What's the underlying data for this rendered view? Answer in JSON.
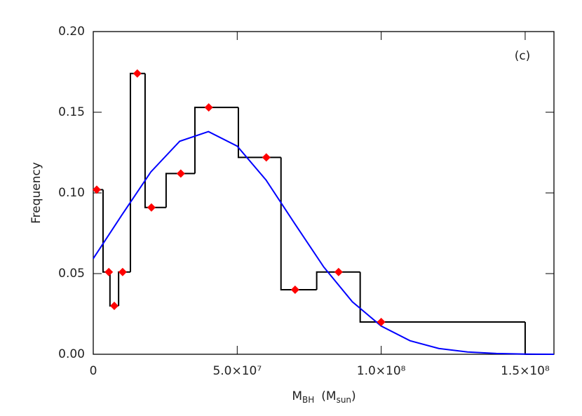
{
  "chart_data": {
    "type": "histogram",
    "annotation": "(c)",
    "xlabel": [
      "M",
      "BH",
      "(M",
      "sun",
      ")"
    ],
    "ylabel": "Frequency",
    "xlim": [
      0,
      160000000
    ],
    "ylim": [
      0,
      0.2
    ],
    "xticks": [
      0,
      {
        "value": 50000000,
        "label": "5.0×10⁷"
      },
      {
        "value": 100000000,
        "label": "1.0×10⁸"
      },
      {
        "value": 150000000,
        "label": "1.5×10⁸"
      }
    ],
    "yticks": [
      {
        "value": 0,
        "label": "0.00"
      },
      {
        "value": 0.05,
        "label": "0.05"
      },
      {
        "value": 0.1,
        "label": "0.10"
      },
      {
        "value": 0.15,
        "label": "0.15"
      },
      {
        "value": 0.2,
        "label": "0.20"
      }
    ],
    "bins": [
      0,
      3400000,
      5800000,
      8800000,
      12900000,
      18000000,
      25300000,
      35300000,
      50400000,
      65200000,
      77600000,
      92700000,
      150000000,
      160000000
    ],
    "values": [
      0.102,
      0.051,
      0.03,
      0.051,
      0.174,
      0.091,
      0.112,
      0.153,
      0.122,
      0.04,
      0.051,
      0.02,
      0
    ],
    "color": "#000000",
    "points": {
      "color": "#ff0000",
      "x": [
        1200000,
        5400000,
        7300000,
        10200000,
        15300000,
        20200000,
        30400000,
        40100000,
        60100000,
        70100000,
        85200000,
        100000000
      ],
      "values": [
        0.102,
        0.051,
        0.03,
        0.051,
        0.174,
        0.091,
        0.112,
        0.153,
        0.122,
        0.04,
        0.051,
        0.02
      ]
    },
    "curve": {
      "color": "#0000ff",
      "x": [
        0,
        10000000,
        20000000,
        30000000,
        40000000,
        50000000,
        60000000,
        70000000,
        80000000,
        90000000,
        100000000,
        110000000,
        120000000,
        130000000,
        140000000,
        150000000,
        160000000
      ],
      "values": [
        0.0593,
        0.0865,
        0.113,
        0.132,
        0.138,
        0.129,
        0.108,
        0.0809,
        0.0542,
        0.0325,
        0.0175,
        0.0084,
        0.0036,
        0.0014,
        0.0005,
        0.0001,
        0
      ]
    }
  }
}
